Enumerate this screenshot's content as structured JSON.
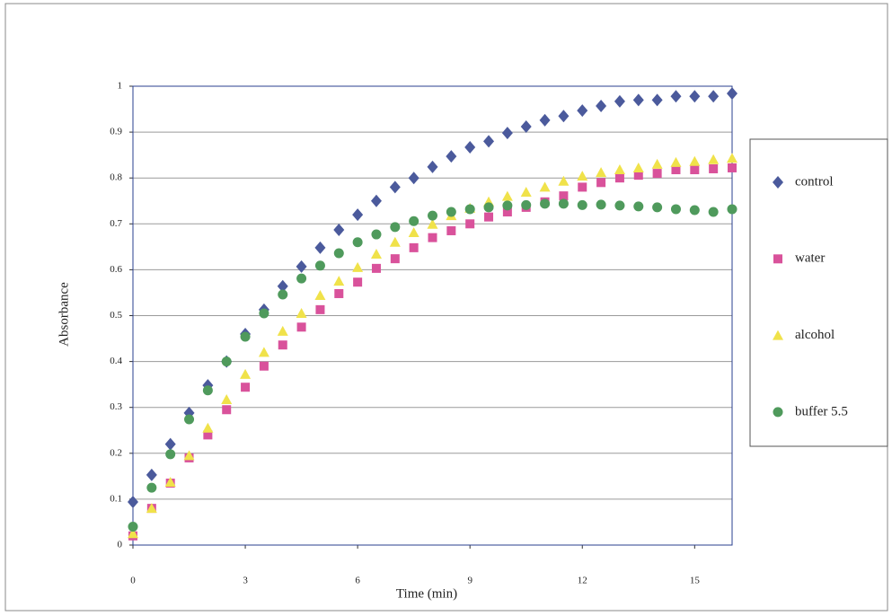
{
  "chart_data": {
    "type": "scatter",
    "x_label": "Time (min)",
    "y_label": "Absorbance",
    "x": [
      0,
      0.5,
      1,
      1.5,
      2,
      2.5,
      3,
      3.5,
      4,
      4.5,
      5,
      5.5,
      6,
      6.5,
      7,
      7.5,
      8,
      8.5,
      9,
      9.5,
      10,
      10.5,
      11,
      11.5,
      12,
      12.5,
      13,
      13.5,
      14,
      14.5,
      15,
      15.5,
      16
    ],
    "xlim": [
      0,
      16
    ],
    "xticks": [
      0,
      3,
      6,
      9,
      12,
      15
    ],
    "ylim": [
      0,
      1
    ],
    "yticks": [
      0,
      0.1,
      0.2,
      0.3,
      0.4,
      0.5,
      0.6,
      0.7,
      0.8,
      0.9,
      1
    ],
    "grid": true,
    "legend": "right",
    "series": [
      {
        "name": "control",
        "color": "#4b5a9c",
        "marker": "diamond",
        "values": [
          0.094,
          0.153,
          0.22,
          0.288,
          0.348,
          0.4,
          0.46,
          0.513,
          0.564,
          0.607,
          0.648,
          0.687,
          0.72,
          0.75,
          0.78,
          0.8,
          0.824,
          0.847,
          0.867,
          0.88,
          0.898,
          0.912,
          0.926,
          0.935,
          0.947,
          0.957,
          0.967,
          0.97,
          0.97,
          0.978,
          0.978,
          0.978,
          0.984
        ]
      },
      {
        "name": "water",
        "color": "#d9529b",
        "marker": "square",
        "values": [
          0.02,
          0.08,
          0.135,
          0.19,
          0.24,
          0.295,
          0.344,
          0.39,
          0.436,
          0.475,
          0.513,
          0.548,
          0.573,
          0.603,
          0.624,
          0.648,
          0.67,
          0.685,
          0.7,
          0.715,
          0.726,
          0.736,
          0.748,
          0.761,
          0.78,
          0.79,
          0.8,
          0.806,
          0.81,
          0.818,
          0.818,
          0.82,
          0.822
        ]
      },
      {
        "name": "alcohol",
        "color": "#f0e24a",
        "marker": "triangle",
        "values": [
          0.025,
          0.08,
          0.137,
          0.195,
          0.255,
          0.317,
          0.372,
          0.42,
          0.466,
          0.505,
          0.544,
          0.575,
          0.605,
          0.634,
          0.66,
          0.681,
          0.699,
          0.718,
          0.734,
          0.748,
          0.76,
          0.769,
          0.78,
          0.793,
          0.804,
          0.812,
          0.818,
          0.822,
          0.83,
          0.834,
          0.836,
          0.84,
          0.843
        ]
      },
      {
        "name": "buffer 5.5",
        "color": "#4f9a5c",
        "marker": "circle",
        "values": [
          0.04,
          0.125,
          0.198,
          0.274,
          0.337,
          0.4,
          0.454,
          0.505,
          0.546,
          0.581,
          0.609,
          0.636,
          0.66,
          0.677,
          0.693,
          0.706,
          0.718,
          0.726,
          0.732,
          0.736,
          0.74,
          0.741,
          0.744,
          0.744,
          0.741,
          0.742,
          0.74,
          0.738,
          0.736,
          0.732,
          0.73,
          0.726,
          0.732
        ]
      }
    ]
  }
}
